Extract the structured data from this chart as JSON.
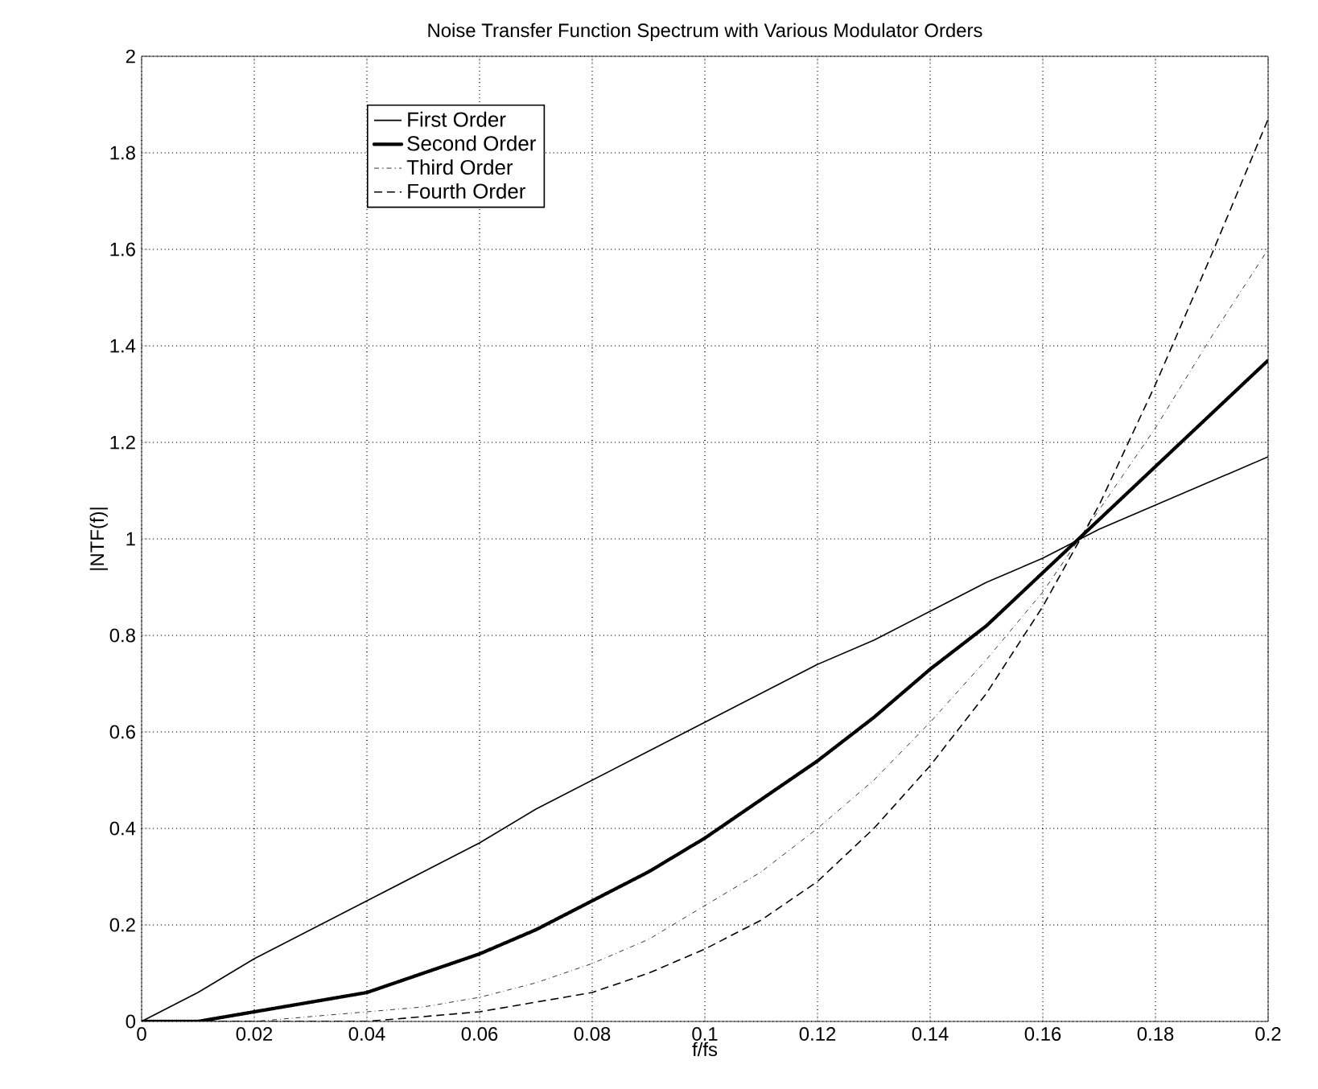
{
  "chart_data": {
    "type": "line",
    "title": "Noise Transfer Function Spectrum with Various Modulator Orders",
    "xlabel": "f/fs",
    "ylabel": "|NTF(f)|",
    "x": [
      0,
      0.01,
      0.02,
      0.03,
      0.04,
      0.05,
      0.06,
      0.07,
      0.08,
      0.09,
      0.1,
      0.11,
      0.12,
      0.13,
      0.14,
      0.15,
      0.16,
      0.17,
      0.18,
      0.19,
      0.2
    ],
    "series": [
      {
        "name": "First Order",
        "color": "#000000",
        "line_style": "solid",
        "values": [
          0,
          0.06,
          0.13,
          0.19,
          0.25,
          0.31,
          0.37,
          0.44,
          0.5,
          0.56,
          0.62,
          0.68,
          0.74,
          0.79,
          0.85,
          0.91,
          0.96,
          1.02,
          1.07,
          1.12,
          1.17
        ]
      },
      {
        "name": "Second Order",
        "color": "#000000",
        "line_style": "dotted",
        "values": [
          0,
          0,
          0.02,
          0.04,
          0.06,
          0.1,
          0.14,
          0.19,
          0.25,
          0.31,
          0.38,
          0.46,
          0.54,
          0.63,
          0.73,
          0.82,
          0.93,
          1.04,
          1.15,
          1.26,
          1.37
        ]
      },
      {
        "name": "Third Order",
        "color": "#000000",
        "line_style": "dashdot",
        "values": [
          0,
          0,
          0,
          0.01,
          0.02,
          0.03,
          0.05,
          0.08,
          0.12,
          0.17,
          0.24,
          0.31,
          0.4,
          0.5,
          0.62,
          0.75,
          0.89,
          1.06,
          1.23,
          1.42,
          1.6
        ]
      },
      {
        "name": "Fourth Order",
        "color": "#000000",
        "line_style": "dashed",
        "values": [
          0,
          0,
          0,
          0,
          0,
          0.01,
          0.02,
          0.04,
          0.06,
          0.1,
          0.15,
          0.21,
          0.29,
          0.4,
          0.53,
          0.68,
          0.86,
          1.07,
          1.32,
          1.59,
          1.87
        ]
      }
    ],
    "xlim": [
      0,
      0.2
    ],
    "ylim": [
      0,
      2
    ],
    "xticks": [
      0,
      0.02,
      0.04,
      0.06,
      0.08,
      0.1,
      0.12,
      0.14,
      0.16,
      0.18,
      0.2
    ],
    "yticks": [
      0,
      0.2,
      0.4,
      0.6,
      0.8,
      1,
      1.2,
      1.4,
      1.6,
      1.8,
      2
    ],
    "grid": true,
    "legend": "top left"
  }
}
